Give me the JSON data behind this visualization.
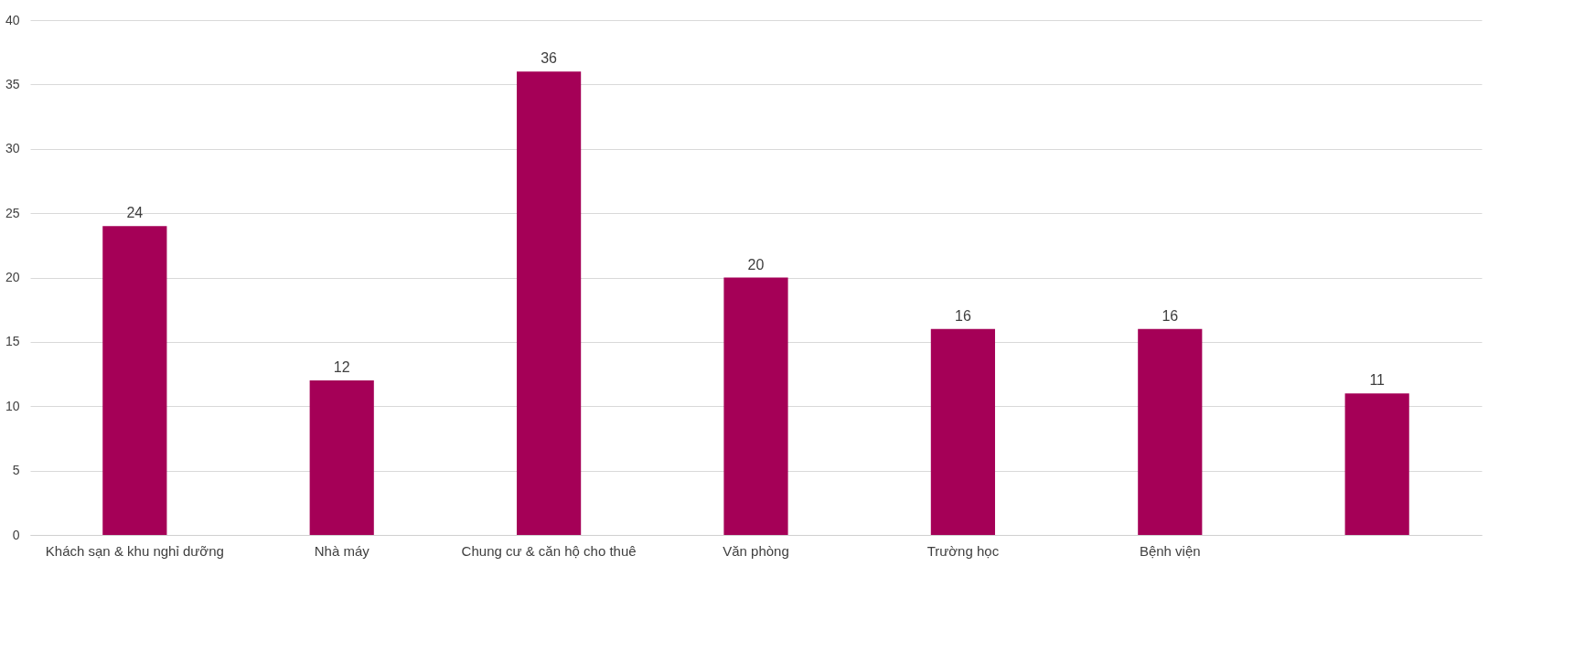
{
  "chart_data": {
    "type": "bar",
    "categories": [
      "Khách sạn & khu nghỉ dưỡng",
      "Nhà máy",
      "Chung cư & căn hộ cho thuê",
      "Văn phòng",
      "Trường học",
      "Bệnh viện",
      null
    ],
    "values": [
      24,
      12,
      36,
      20,
      16,
      16,
      11
    ],
    "color": "#a50057",
    "ylim": [
      0,
      40
    ],
    "yticks": [
      0,
      5,
      10,
      15,
      20,
      25,
      30,
      35,
      40
    ],
    "grid": "y",
    "data_labels": true
  }
}
